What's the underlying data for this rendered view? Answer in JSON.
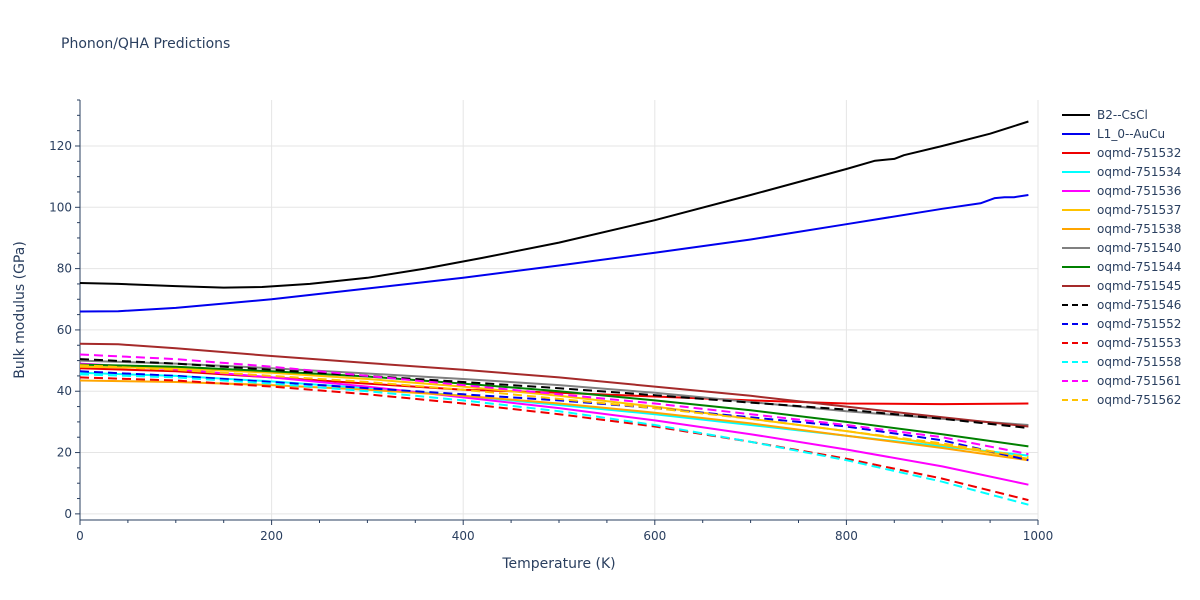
{
  "chart_data": {
    "type": "line",
    "title": "Phonon/QHA Predictions",
    "xlabel": "Temperature (K)",
    "ylabel": "Bulk modulus (GPa)",
    "xlim": [
      0,
      1000
    ],
    "ylim": [
      -2,
      135
    ],
    "xticks": [
      0,
      200,
      400,
      600,
      800,
      1000
    ],
    "yticks": [
      0,
      20,
      40,
      60,
      80,
      100,
      120
    ],
    "grid": true,
    "legend_position": "right",
    "series": [
      {
        "name": "B2--CsCl",
        "color": "#000000",
        "dash": "solid",
        "x": [
          0,
          40,
          100,
          150,
          190,
          240,
          300,
          360,
          420,
          500,
          600,
          700,
          800,
          830,
          850,
          860,
          900,
          950,
          990
        ],
        "y": [
          75.3,
          75.0,
          74.3,
          73.8,
          74.0,
          75.0,
          77.0,
          80.0,
          83.5,
          88.5,
          95.8,
          104.0,
          112.5,
          115.2,
          115.8,
          117.0,
          120.0,
          124.0,
          128.0
        ]
      },
      {
        "name": "L1_0--AuCu",
        "color": "#0000ee",
        "dash": "solid",
        "x": [
          0,
          40,
          100,
          200,
          300,
          400,
          500,
          600,
          700,
          800,
          900,
          940,
          955,
          965,
          975,
          990
        ],
        "y": [
          66.0,
          66.1,
          67.2,
          70.0,
          73.5,
          77.0,
          81.0,
          85.2,
          89.5,
          94.5,
          99.5,
          101.3,
          103.0,
          103.3,
          103.3,
          104.0
        ]
      },
      {
        "name": "oqmd-751532",
        "color": "#ee0000",
        "dash": "solid",
        "x": [
          0,
          100,
          200,
          300,
          400,
          500,
          600,
          700,
          760,
          800,
          900,
          990
        ],
        "y": [
          47.5,
          46.5,
          44.5,
          42.5,
          40.5,
          39.5,
          38.3,
          37.0,
          36.4,
          36.0,
          35.8,
          36.0
        ]
      },
      {
        "name": "oqmd-751534",
        "color": "#00ffff",
        "dash": "solid",
        "x": [
          0,
          100,
          200,
          300,
          400,
          500,
          600,
          700,
          800,
          900,
          990
        ],
        "y": [
          46.0,
          45.0,
          43.2,
          41.0,
          38.5,
          35.5,
          32.5,
          29.0,
          25.5,
          22.0,
          19.0
        ]
      },
      {
        "name": "oqmd-751536",
        "color": "#ff00ff",
        "dash": "solid",
        "x": [
          0,
          100,
          200,
          300,
          400,
          500,
          600,
          700,
          800,
          900,
          990
        ],
        "y": [
          49.0,
          47.2,
          44.5,
          41.5,
          38.0,
          34.5,
          30.5,
          26.0,
          21.0,
          15.5,
          9.5
        ]
      },
      {
        "name": "oqmd-751537",
        "color": "#ffc300",
        "dash": "solid",
        "x": [
          0,
          100,
          200,
          300,
          400,
          500,
          600,
          700,
          800,
          900,
          990
        ],
        "y": [
          48.0,
          47.5,
          46.0,
          44.0,
          41.5,
          38.5,
          35.0,
          31.0,
          27.0,
          22.5,
          18.0
        ]
      },
      {
        "name": "oqmd-751538",
        "color": "#ffa500",
        "dash": "solid",
        "x": [
          0,
          100,
          200,
          300,
          400,
          500,
          600,
          700,
          800,
          900,
          990
        ],
        "y": [
          43.5,
          43.0,
          42.0,
          40.5,
          38.5,
          36.0,
          33.0,
          29.5,
          25.5,
          21.5,
          17.5
        ]
      },
      {
        "name": "oqmd-751540",
        "color": "#808080",
        "dash": "solid",
        "x": [
          0,
          100,
          200,
          300,
          400,
          500,
          600,
          700,
          800,
          900,
          990
        ],
        "y": [
          50.0,
          49.0,
          47.5,
          45.8,
          44.0,
          42.0,
          39.5,
          36.5,
          33.5,
          31.0,
          29.0
        ]
      },
      {
        "name": "oqmd-751544",
        "color": "#008000",
        "dash": "solid",
        "x": [
          0,
          100,
          200,
          300,
          400,
          500,
          600,
          700,
          800,
          900,
          990
        ],
        "y": [
          48.7,
          48.0,
          46.5,
          44.8,
          42.5,
          40.0,
          37.0,
          33.8,
          30.0,
          26.0,
          22.0
        ]
      },
      {
        "name": "oqmd-751545",
        "color": "#a52a2a",
        "dash": "solid",
        "x": [
          0,
          40,
          100,
          200,
          300,
          400,
          500,
          600,
          700,
          800,
          900,
          990
        ],
        "y": [
          55.5,
          55.3,
          54.0,
          51.5,
          49.2,
          47.0,
          44.5,
          41.5,
          38.5,
          35.0,
          31.5,
          28.5
        ]
      },
      {
        "name": "oqmd-751546",
        "color": "#000000",
        "dash": "dash",
        "x": [
          0,
          100,
          200,
          300,
          400,
          500,
          600,
          700,
          800,
          900,
          990
        ],
        "y": [
          50.5,
          49.0,
          47.0,
          45.0,
          43.0,
          41.0,
          38.7,
          36.3,
          34.0,
          31.0,
          28.0
        ]
      },
      {
        "name": "oqmd-751552",
        "color": "#0000ee",
        "dash": "dash",
        "x": [
          0,
          100,
          200,
          300,
          400,
          500,
          600,
          700,
          800,
          900,
          990
        ],
        "y": [
          46.5,
          45.0,
          43.0,
          41.0,
          39.0,
          37.0,
          34.5,
          31.5,
          28.5,
          24.0,
          17.5
        ]
      },
      {
        "name": "oqmd-751553",
        "color": "#ee0000",
        "dash": "dash",
        "x": [
          0,
          100,
          200,
          300,
          400,
          500,
          600,
          700,
          800,
          900,
          990
        ],
        "y": [
          44.5,
          43.5,
          41.5,
          39.0,
          36.0,
          32.5,
          28.5,
          23.5,
          18.0,
          11.5,
          4.5
        ]
      },
      {
        "name": "oqmd-751558",
        "color": "#00ffff",
        "dash": "dash",
        "x": [
          0,
          100,
          200,
          300,
          400,
          500,
          600,
          700,
          800,
          900,
          990
        ],
        "y": [
          45.5,
          44.5,
          42.5,
          40.0,
          37.0,
          33.5,
          29.0,
          23.5,
          17.5,
          10.5,
          3.0
        ]
      },
      {
        "name": "oqmd-751561",
        "color": "#ff00ff",
        "dash": "dash",
        "x": [
          0,
          100,
          200,
          300,
          400,
          500,
          600,
          700,
          800,
          900,
          990
        ],
        "y": [
          52.0,
          50.5,
          48.0,
          45.0,
          42.0,
          39.0,
          36.0,
          32.5,
          29.0,
          25.0,
          19.5
        ]
      },
      {
        "name": "oqmd-751562",
        "color": "#ffc300",
        "dash": "dash",
        "x": [
          0,
          100,
          200,
          300,
          400,
          500,
          600,
          700,
          800,
          900,
          990
        ],
        "y": [
          48.5,
          47.0,
          45.0,
          43.0,
          40.5,
          37.5,
          34.5,
          31.0,
          27.0,
          23.0,
          18.5
        ]
      }
    ]
  }
}
